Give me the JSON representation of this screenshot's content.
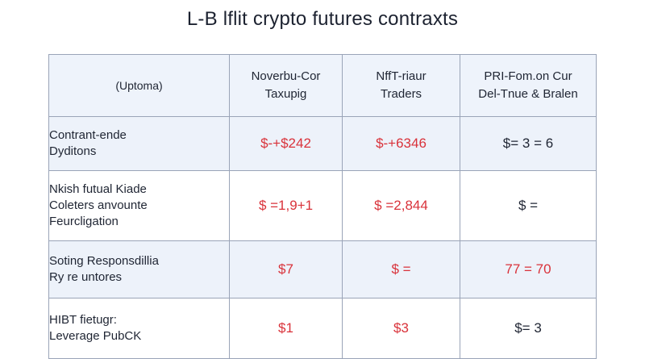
{
  "title": "L-B lflit crypto futures contraxts",
  "header": {
    "col0": [
      "(Uptoma)"
    ],
    "col1": [
      "Noverbu-Cor",
      "Taxupig"
    ],
    "col2": [
      "NffT-riaur",
      "Traders"
    ],
    "col3": [
      "PRI-Fom.on Cur",
      "Del-Tnue & Bralen"
    ]
  },
  "rows": [
    {
      "label": [
        "Contrant-ende",
        "Dyditons"
      ],
      "v1": "$-+$242",
      "v2": "$-+6346",
      "v3": "$= 3 = 6"
    },
    {
      "label": [
        "Nkish futual Kiade",
        "Coleters anvounte",
        "Feurcligation"
      ],
      "v1": "$ =1,9+1",
      "v2": "$ =2,844",
      "v3": "$ ="
    },
    {
      "label": [
        "Soting Responsdillia",
        "Ry re untores"
      ],
      "v1": "$7",
      "v2": "$ =",
      "v3": "77 = 70"
    },
    {
      "label": [
        "HIBT fietugr:",
        "Leverage PubCK"
      ],
      "v1": "$1",
      "v2": "$3",
      "v3": "$= 3"
    }
  ],
  "colors": {
    "accent_red": "#d9323a",
    "row_blue": "#edf2fa",
    "border": "#9aa4b8"
  }
}
